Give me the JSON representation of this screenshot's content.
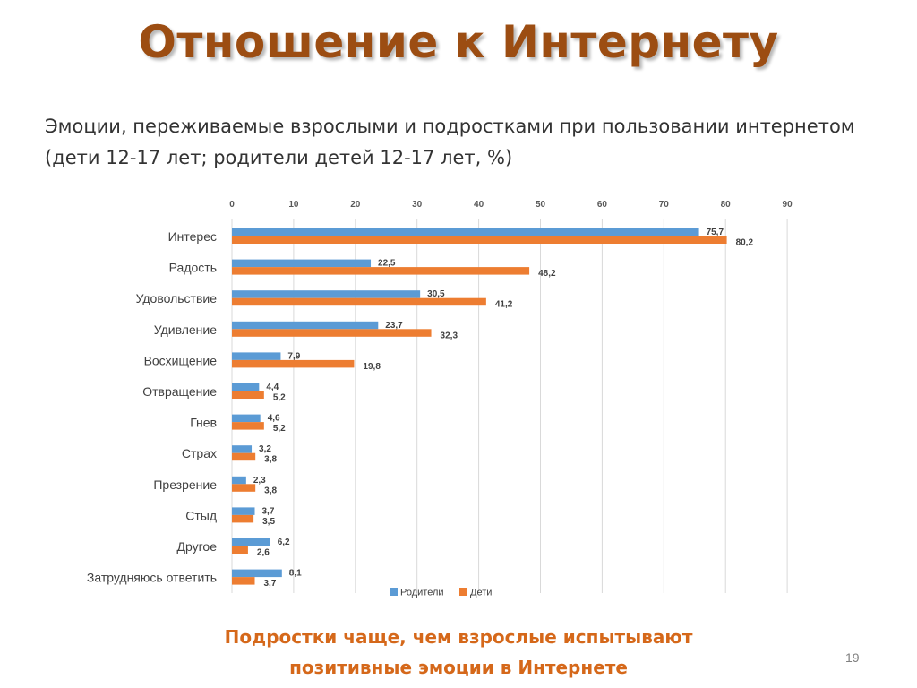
{
  "slide": {
    "title": "Отношение к Интернету",
    "subtitle_line1": "Эмоции, переживаемые взрослыми и подростками при пользовании интернетом",
    "subtitle_line2": "(дети 12-17 лет; родители детей 12-17 лет, %)",
    "footer_line1": "Подростки чаще, чем взрослые испытывают",
    "footer_line2": "позитивные эмоции в Интернете",
    "page_number": "19"
  },
  "chart_data": {
    "type": "bar",
    "orientation": "horizontal",
    "title": "",
    "xlabel": "",
    "ylabel": "",
    "xlim": [
      0,
      90
    ],
    "x_ticks": [
      0,
      10,
      20,
      30,
      40,
      50,
      60,
      70,
      80,
      90
    ],
    "grid": true,
    "legend_position": "bottom",
    "categories": [
      "Интерес",
      "Радость",
      "Удовольствие",
      "Удивление",
      "Восхищение",
      "Отвращение",
      "Гнев",
      "Страх",
      "Презрение",
      "Стыд",
      "Другое",
      "Затрудняюсь ответить"
    ],
    "series": [
      {
        "name": "Родители",
        "color": "#5b9bd5",
        "values": [
          75.7,
          22.5,
          30.5,
          23.7,
          7.9,
          4.4,
          4.6,
          3.2,
          2.3,
          3.7,
          6.2,
          8.1
        ],
        "labels": [
          "75,7",
          "22,5",
          "30,5",
          "23,7",
          "7,9",
          "4,4",
          "4,6",
          "3,2",
          "2,3",
          "3,7",
          "6,2",
          "8,1"
        ]
      },
      {
        "name": "Дети",
        "color": "#ed7d31",
        "values": [
          80.2,
          48.2,
          41.2,
          32.3,
          19.8,
          5.2,
          5.2,
          3.8,
          3.8,
          3.5,
          2.6,
          3.7
        ],
        "labels": [
          "80,2",
          "48,2",
          "41,2",
          "32,3",
          "19,8",
          "5,2",
          "5,2",
          "3,8",
          "3,8",
          "3,5",
          "2,6",
          "3,7"
        ]
      }
    ]
  }
}
